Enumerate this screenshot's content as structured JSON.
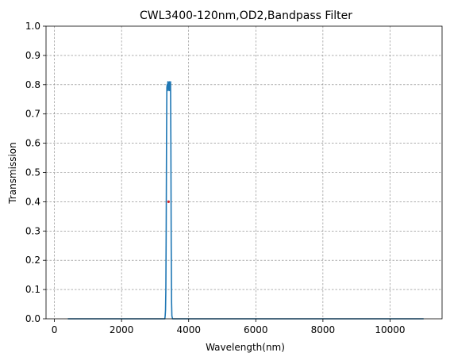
{
  "chart_data": {
    "type": "line",
    "title": "CWL3400-120nm,OD2,Bandpass Filter",
    "xlabel": "Wavelength(nm)",
    "ylabel": "Transmission",
    "xlim": [
      -250,
      11550
    ],
    "ylim": [
      0,
      1
    ],
    "xticks": [
      "0",
      "2000",
      "4000",
      "6000",
      "8000",
      "10000"
    ],
    "xtick_values": [
      0,
      2000,
      4000,
      6000,
      8000,
      10000
    ],
    "yticks": [
      "0.0",
      "0.1",
      "0.2",
      "0.3",
      "0.4",
      "0.5",
      "0.6",
      "0.7",
      "0.8",
      "0.9",
      "1.0"
    ],
    "ytick_values": [
      0,
      0.1,
      0.2,
      0.3,
      0.4,
      0.5,
      0.6,
      0.7,
      0.8,
      0.9,
      1.0
    ],
    "grid": true,
    "legend": "none",
    "series": [
      {
        "color": "#1f77b4",
        "x": [
          400,
          3000,
          3290,
          3300,
          3310,
          3320,
          3330,
          3340,
          3350,
          3360,
          3370,
          3380,
          3390,
          3400,
          3410,
          3420,
          3430,
          3440,
          3450,
          3460,
          3470,
          3480,
          3490,
          3500,
          3520,
          3560,
          11000
        ],
        "y": [
          0.0,
          0.0,
          0.0,
          0.01,
          0.03,
          0.1,
          0.3,
          0.6,
          0.79,
          0.8,
          0.79,
          0.81,
          0.78,
          0.8,
          0.79,
          0.81,
          0.78,
          0.8,
          0.79,
          0.81,
          0.6,
          0.25,
          0.06,
          0.01,
          0.0,
          0.0,
          0.0
        ]
      }
    ],
    "markers": [
      {
        "x": 3400,
        "y": 0.4,
        "color": "#d62728"
      }
    ]
  }
}
